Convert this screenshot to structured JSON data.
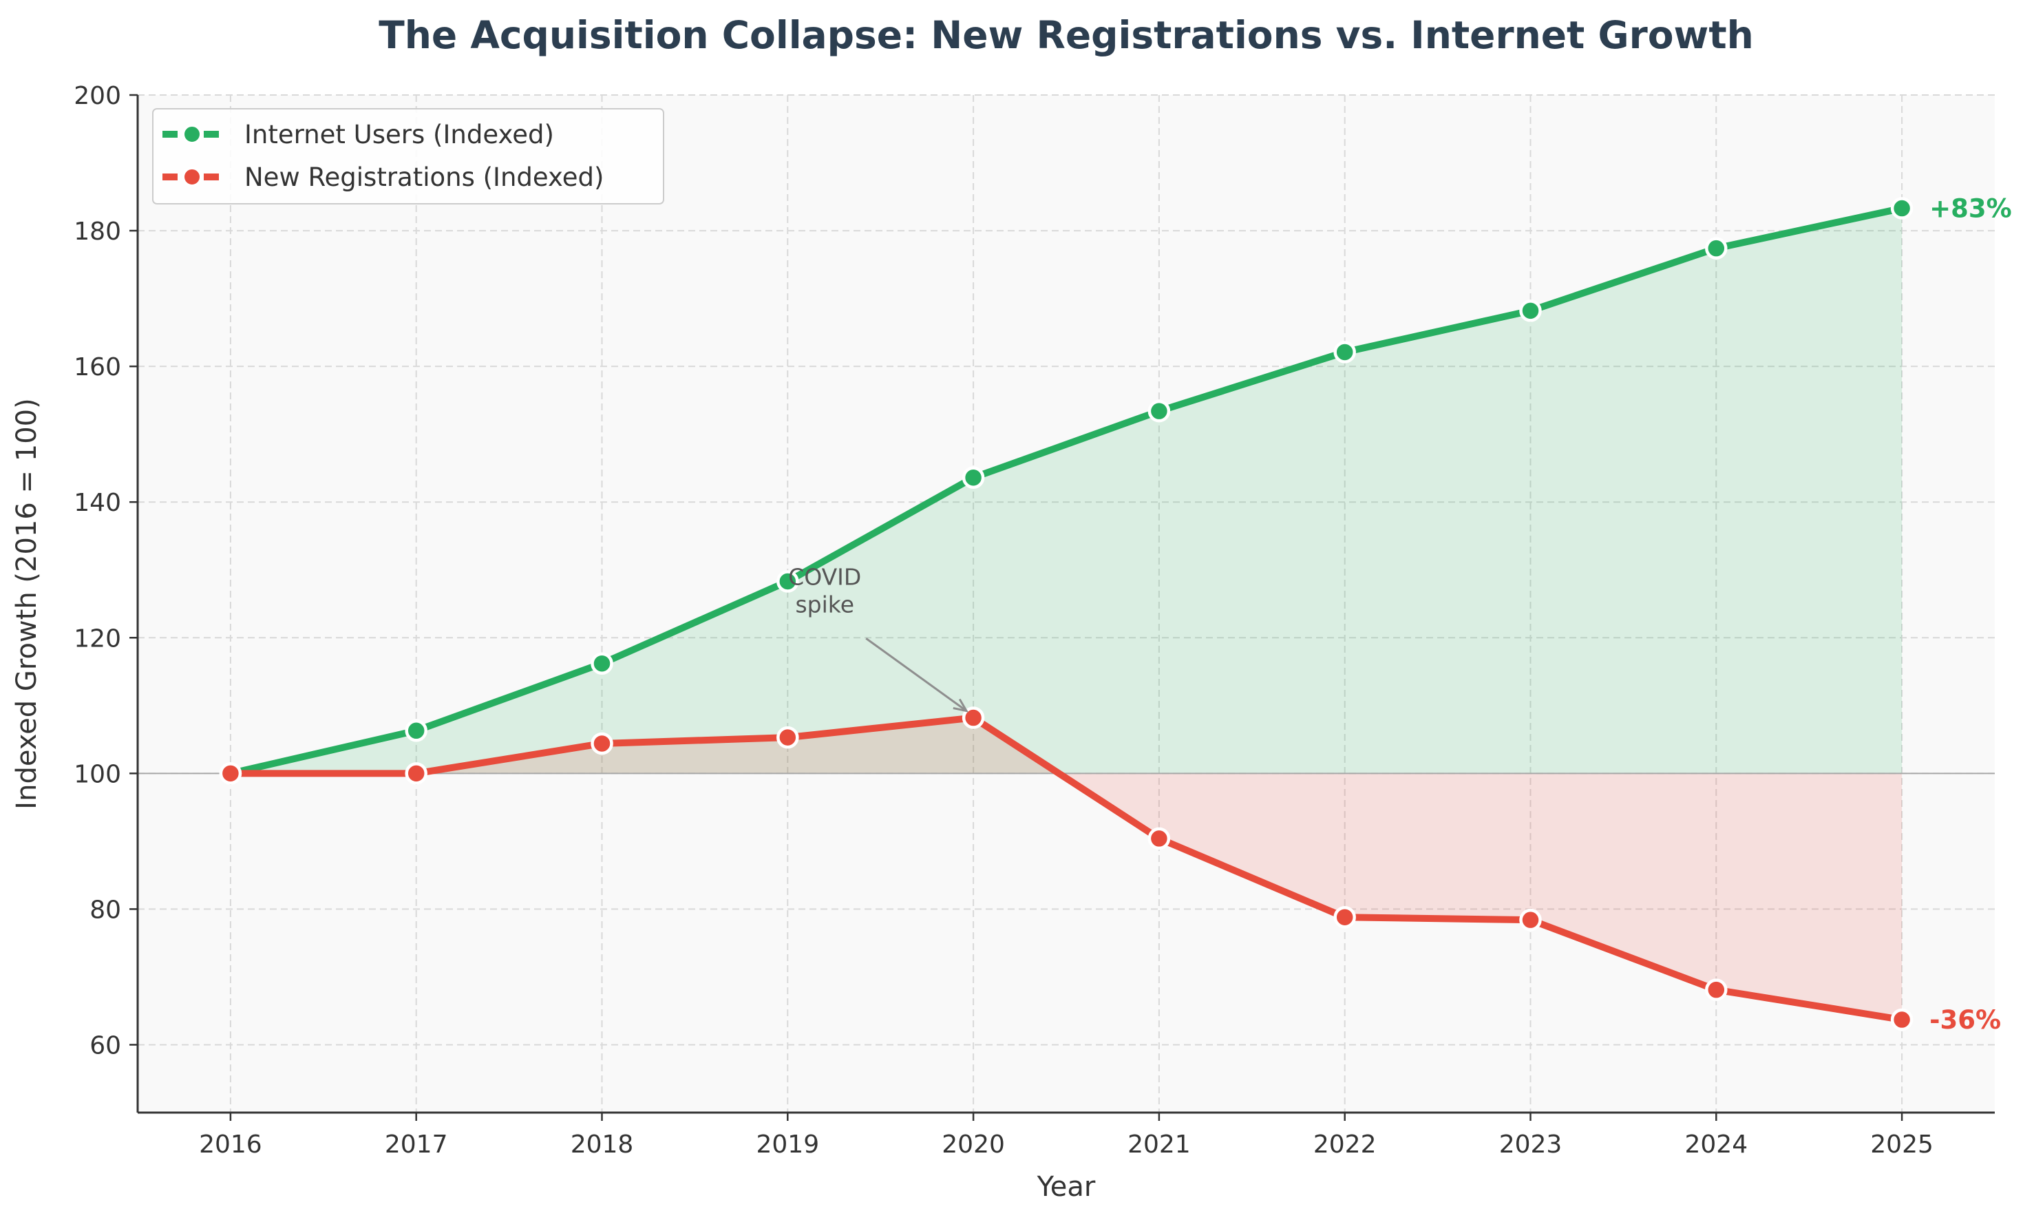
{
  "chart_data": {
    "type": "line",
    "title": "The Acquisition Collapse: New Registrations vs. Internet Growth",
    "xlabel": "Year",
    "ylabel": "Indexed Growth (2016 = 100)",
    "x": [
      2016,
      2017,
      2018,
      2019,
      2020,
      2021,
      2022,
      2023,
      2024,
      2025
    ],
    "ylim": [
      50,
      200
    ],
    "yticks": [
      60,
      80,
      100,
      120,
      140,
      160,
      180,
      200
    ],
    "baseline": 100,
    "grid": true,
    "legend_position": "top-left",
    "series": [
      {
        "name": "Internet Users (Indexed)",
        "color": "#27ae60",
        "values": [
          100,
          106.3,
          116.2,
          128.3,
          143.6,
          153.4,
          162.1,
          168.2,
          177.4,
          183.3
        ],
        "end_label": "+83%"
      },
      {
        "name": "New Registrations (Indexed)",
        "color": "#e74c3c",
        "values": [
          100,
          100,
          104.4,
          105.3,
          108.2,
          90.4,
          78.8,
          78.4,
          68.1,
          63.7
        ],
        "end_label": "-36%"
      }
    ],
    "annotations": [
      {
        "text_lines": [
          "COVID",
          "spike"
        ],
        "target_x": 2020,
        "target_y": 108.2,
        "text_x": 2019.2,
        "text_y": 127
      }
    ]
  }
}
